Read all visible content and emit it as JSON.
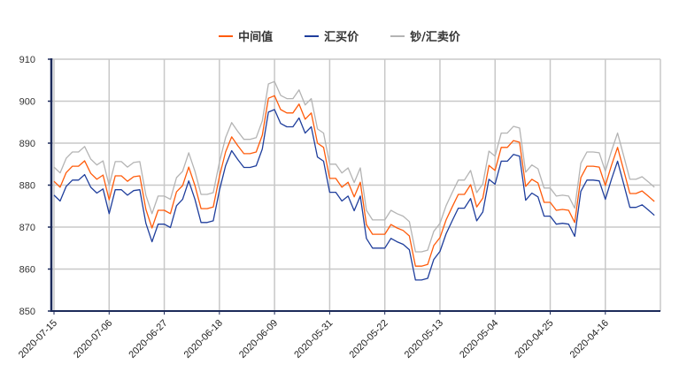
{
  "chart_data": {
    "type": "line",
    "title": "",
    "xlabel": "",
    "ylabel": "",
    "ylim": [
      850,
      910
    ],
    "yticks": [
      850,
      860,
      870,
      880,
      890,
      900,
      910
    ],
    "grid": true,
    "legend_position": "top-center",
    "x_tick_labels": [
      "2020-07-15",
      "2020-07-06",
      "2020-06-27",
      "2020-06-18",
      "2020-06-09",
      "2020-05-31",
      "2020-05-22",
      "2020-05-13",
      "2020-05-04",
      "2020-04-25",
      "2020-04-16"
    ],
    "x_tick_every": 9,
    "series": [
      {
        "name": "中间值",
        "color": "#FF5B0A",
        "values": [
          880.9,
          879.5,
          883.0,
          884.5,
          884.5,
          885.8,
          882.8,
          881.4,
          882.4,
          876.5,
          882.2,
          882.2,
          880.9,
          882.0,
          882.2,
          874.2,
          869.8,
          874.0,
          874.0,
          873.2,
          878.4,
          879.9,
          884.3,
          879.9,
          874.4,
          874.4,
          874.8,
          882.0,
          887.9,
          891.5,
          889.4,
          887.5,
          887.5,
          887.9,
          891.9,
          900.7,
          901.3,
          898.0,
          897.2,
          897.2,
          899.3,
          895.7,
          897.2,
          890.0,
          889.0,
          881.6,
          881.6,
          879.5,
          880.7,
          877.2,
          880.7,
          870.6,
          868.3,
          868.3,
          868.3,
          870.6,
          869.8,
          869.2,
          867.9,
          860.7,
          860.7,
          861.1,
          865.6,
          867.5,
          871.7,
          874.8,
          877.8,
          877.8,
          880.1,
          874.8,
          876.9,
          884.7,
          883.5,
          889.0,
          889.0,
          890.6,
          890.2,
          879.7,
          881.4,
          880.5,
          875.9,
          875.9,
          874.0,
          874.2,
          874.0,
          871.1,
          881.8,
          884.5,
          884.5,
          884.3,
          879.9,
          884.7,
          889.0,
          883.5,
          878.0,
          878.0,
          878.6,
          877.4,
          876.1
        ]
      },
      {
        "name": "汇买价",
        "color": "#1F3E9C",
        "values": [
          877.6,
          876.2,
          879.7,
          881.2,
          881.2,
          882.5,
          879.5,
          878.1,
          879.1,
          873.2,
          878.9,
          878.9,
          877.6,
          878.7,
          878.9,
          870.9,
          866.5,
          870.7,
          870.7,
          869.9,
          875.1,
          876.6,
          881.0,
          876.6,
          871.1,
          871.1,
          871.5,
          878.7,
          884.6,
          888.2,
          886.1,
          884.2,
          884.2,
          884.6,
          888.6,
          897.4,
          898.0,
          894.7,
          893.9,
          893.9,
          896.0,
          892.4,
          893.9,
          886.7,
          885.7,
          878.3,
          878.3,
          876.2,
          877.4,
          873.9,
          877.4,
          867.3,
          865.0,
          865.0,
          865.0,
          867.3,
          866.5,
          865.9,
          864.6,
          857.4,
          857.4,
          857.8,
          862.3,
          864.2,
          868.4,
          871.5,
          874.5,
          874.5,
          876.8,
          871.5,
          873.6,
          881.4,
          880.2,
          885.7,
          885.7,
          887.3,
          886.9,
          876.4,
          878.1,
          877.2,
          872.6,
          872.6,
          870.7,
          870.9,
          870.7,
          867.8,
          878.5,
          881.2,
          881.2,
          881.0,
          876.6,
          881.4,
          885.7,
          880.2,
          874.7,
          874.7,
          875.3,
          874.1,
          872.8
        ]
      },
      {
        "name": "钞/汇卖价",
        "color": "#B4B4B4",
        "values": [
          884.3,
          882.9,
          886.4,
          887.9,
          887.9,
          889.2,
          886.2,
          884.8,
          885.8,
          879.9,
          885.6,
          885.6,
          884.3,
          885.4,
          885.6,
          877.6,
          873.2,
          877.4,
          877.4,
          876.6,
          881.8,
          883.3,
          887.7,
          883.3,
          877.8,
          877.8,
          878.2,
          885.4,
          891.3,
          894.9,
          892.8,
          890.9,
          890.9,
          891.3,
          895.3,
          904.1,
          904.7,
          901.4,
          900.6,
          900.6,
          902.7,
          899.1,
          900.6,
          893.4,
          892.4,
          885.0,
          885.0,
          882.9,
          884.1,
          880.6,
          884.1,
          874.0,
          871.7,
          871.7,
          871.7,
          874.0,
          873.2,
          872.6,
          871.3,
          864.1,
          864.1,
          864.5,
          869.0,
          870.9,
          875.1,
          878.2,
          881.2,
          881.2,
          883.5,
          878.2,
          880.3,
          888.1,
          886.9,
          892.4,
          892.4,
          894.0,
          893.6,
          883.1,
          884.8,
          883.9,
          879.3,
          879.3,
          877.4,
          877.6,
          877.4,
          874.5,
          885.2,
          887.9,
          887.9,
          887.7,
          883.3,
          888.1,
          892.4,
          886.9,
          881.4,
          881.4,
          882.0,
          880.8,
          879.5
        ]
      }
    ]
  },
  "colors": {
    "axis": "#1C2A5A",
    "grid": "#C8C8C8"
  }
}
